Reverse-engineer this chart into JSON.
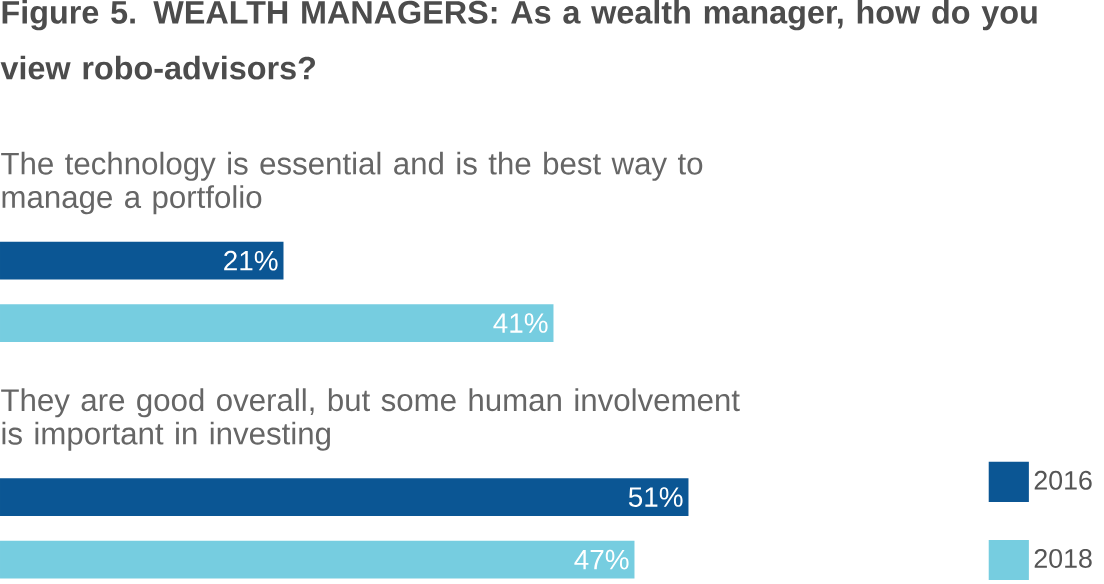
{
  "chart_data": {
    "type": "bar",
    "orientation": "horizontal",
    "title": "**Figure 5.** WEALTH MANAGERS: As a wealth manager, how do you view robo-advisors?",
    "categories": [
      "The technology is essential and is the best way to manage a portfolio",
      "They are good overall, but some human involvement is important in investing"
    ],
    "series": [
      {
        "name": "2016",
        "color": "#0b5694",
        "values": [
          21,
          51
        ],
        "value_labels": [
          "21%",
          "51%"
        ]
      },
      {
        "name": "2018",
        "color": "#76cde0",
        "values": [
          41,
          47
        ],
        "value_labels": [
          "41%",
          "47%"
        ]
      }
    ],
    "legend": "bottom right"
  }
}
